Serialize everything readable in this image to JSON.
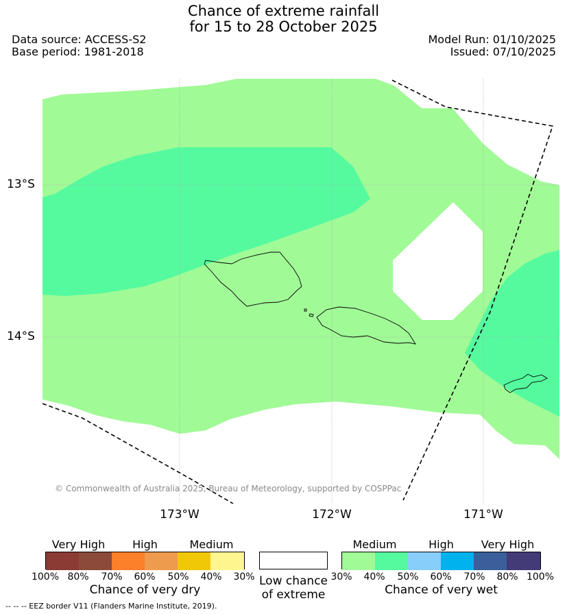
{
  "title": {
    "line1": "Chance of extreme rainfall",
    "line2": "for 15 to 28 October 2025"
  },
  "meta": {
    "data_source": "Data source: ACCESS-S2",
    "base_period": "Base period: 1981-2018",
    "model_run": "Model Run: 01/10/2025",
    "issued": "Issued: 07/10/2025"
  },
  "map": {
    "lat_labels": [
      "13°S",
      "14°S"
    ],
    "lon_labels": [
      "173°W",
      "172°W",
      "171°W"
    ],
    "copyright": "© Commonwealth of Australia 2025, Bureau of Meteorology, supported by COSPPac",
    "colors": {
      "medium_wet": "#a0fa96",
      "high_wet": "#55fa9f",
      "coast": "#000000"
    }
  },
  "legend": {
    "dry": {
      "headings": [
        "Very High",
        "High",
        "Medium"
      ],
      "ticks": [
        "100%",
        "80%",
        "70%",
        "60%",
        "50%",
        "40%",
        "30%"
      ],
      "label": "Chance of very dry",
      "colors": [
        "#8b3a34",
        "#8b4a3a",
        "#fc7f2a",
        "#ee9b4d",
        "#f0c808",
        "#fff68f"
      ]
    },
    "low": {
      "label_line1": "Low chance",
      "label_line2": "of extreme"
    },
    "wet": {
      "headings": [
        "Medium",
        "High",
        "Very High"
      ],
      "ticks": [
        "30%",
        "40%",
        "50%",
        "60%",
        "70%",
        "80%",
        "100%"
      ],
      "label": "Chance of very wet",
      "colors": [
        "#a0fa96",
        "#55fa9f",
        "#87cefa",
        "#00b2ee",
        "#3a5f9a",
        "#433a78"
      ]
    }
  },
  "footnote": "-- -- -- EEZ border V11 (Flanders Marine Institute, 2019)."
}
